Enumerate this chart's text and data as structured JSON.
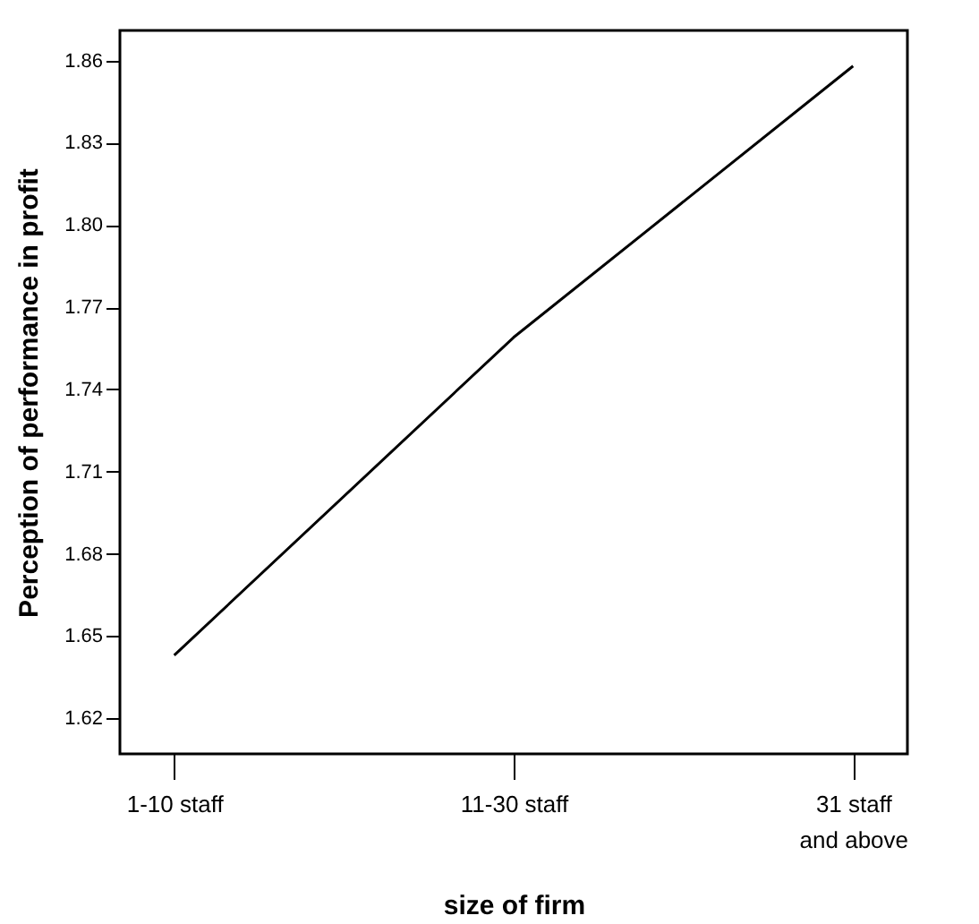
{
  "chart_data": {
    "type": "line",
    "xlabel": "size of firm",
    "ylabel": "Perception of performance in profit",
    "categories": [
      "1-10 staff",
      "11-30 staff",
      "31 staff\nand above"
    ],
    "series": [
      {
        "color": "#000000",
        "values": [
          1.643,
          1.759,
          1.858
        ]
      }
    ],
    "ylim": [
      1.607,
      1.871
    ],
    "yticks": [
      1.62,
      1.65,
      1.68,
      1.71,
      1.74,
      1.77,
      {
        "value": 1.8,
        "label": "1.80"
      },
      1.83,
      1.86
    ],
    "grid": false,
    "legend": false,
    "marker": "none",
    "line_style": "solid"
  }
}
